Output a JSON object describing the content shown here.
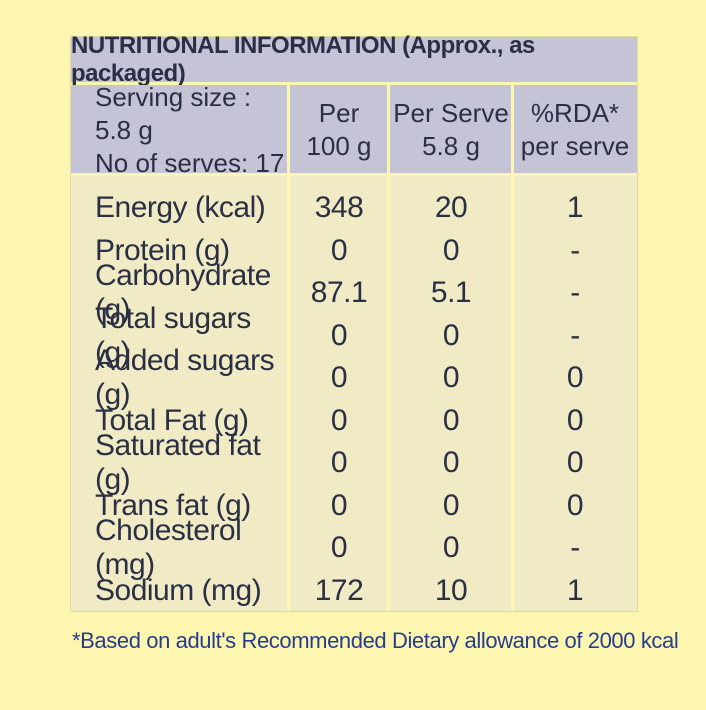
{
  "title": "NUTRITIONAL INFORMATION (Approx., as packaged)",
  "header": {
    "serving_size": "Serving size : 5.8 g",
    "no_of_serves": "No of serves: 17",
    "per_100g_line1": "Per",
    "per_100g_line2": "100 g",
    "per_serve_line1": "Per Serve",
    "per_serve_line2": "5.8 g",
    "rda_line1": "%RDA*",
    "rda_line2": "per serve"
  },
  "rows": [
    {
      "nutrient": "Energy (kcal)",
      "per_100g": "348",
      "per_serve": "20",
      "rda": "1"
    },
    {
      "nutrient": "Protein (g)",
      "per_100g": "0",
      "per_serve": "0",
      "rda": "-"
    },
    {
      "nutrient": "Carbohydrate (g)",
      "per_100g": "87.1",
      "per_serve": "5.1",
      "rda": "-"
    },
    {
      "nutrient": "Total sugars (g)",
      "per_100g": "0",
      "per_serve": "0",
      "rda": "-"
    },
    {
      "nutrient": "Added sugars (g)",
      "per_100g": "0",
      "per_serve": "0",
      "rda": "0"
    },
    {
      "nutrient": "Total Fat (g)",
      "per_100g": "0",
      "per_serve": "0",
      "rda": "0"
    },
    {
      "nutrient": "Saturated fat (g)",
      "per_100g": "0",
      "per_serve": "0",
      "rda": "0"
    },
    {
      "nutrient": "Trans fat (g)",
      "per_100g": "0",
      "per_serve": "0",
      "rda": "0"
    },
    {
      "nutrient": "Cholesterol (mg)",
      "per_100g": "0",
      "per_serve": "0",
      "rda": "-"
    },
    {
      "nutrient": "Sodium (mg)",
      "per_100g": "172",
      "per_serve": "10",
      "rda": "1"
    }
  ],
  "footnote": "*Based on adult's Recommended Dietary allowance of 2000 kcal",
  "colors": {
    "background": "#fdf6b0",
    "panel": "#f0ebc4",
    "header": "#c5c3d6",
    "text": "#2b2f45",
    "footnote": "#263d8c"
  }
}
